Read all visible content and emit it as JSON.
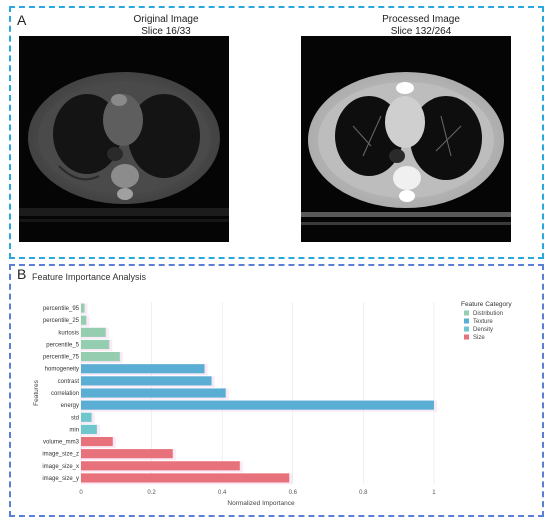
{
  "panel_a": {
    "letter": "A",
    "original": {
      "title": "Original Image",
      "subtitle": "Slice 16/33"
    },
    "processed": {
      "title": "Processed Image",
      "subtitle": "Slice 132/264"
    }
  },
  "panel_b": {
    "letter": "B"
  },
  "colors": {
    "Distribution": "#94cdb0",
    "Texture": "#5aaed4",
    "Density": "#6ec7cc",
    "Size": "#e8727b"
  },
  "chart_data": {
    "type": "bar",
    "orientation": "horizontal",
    "title": "Feature Importance Analysis",
    "xlabel": "Normalized Importance",
    "ylabel": "Features",
    "xlim": [
      0,
      1.02
    ],
    "xticks": [
      "0",
      "0.2",
      "0.4",
      "0.6",
      "0.8",
      "1"
    ],
    "legend": {
      "title": "Feature Category",
      "position": "top-right",
      "entries": [
        "Distribution",
        "Texture",
        "Density",
        "Size"
      ]
    },
    "categories": [
      "percentile_95",
      "percentile_25",
      "kurtosis",
      "percentile_5",
      "percentile_75",
      "homogeneity",
      "contrast",
      "correlation",
      "energy",
      "std",
      "min",
      "volume_mm3",
      "image_size_z",
      "image_size_x",
      "image_size_y"
    ],
    "values": [
      0.01,
      0.015,
      0.07,
      0.08,
      0.11,
      0.35,
      0.37,
      0.41,
      1.0,
      0.03,
      0.045,
      0.09,
      0.26,
      0.45,
      0.59
    ],
    "series_category": [
      "Distribution",
      "Distribution",
      "Distribution",
      "Distribution",
      "Distribution",
      "Texture",
      "Texture",
      "Texture",
      "Texture",
      "Density",
      "Density",
      "Size",
      "Size",
      "Size",
      "Size"
    ]
  }
}
